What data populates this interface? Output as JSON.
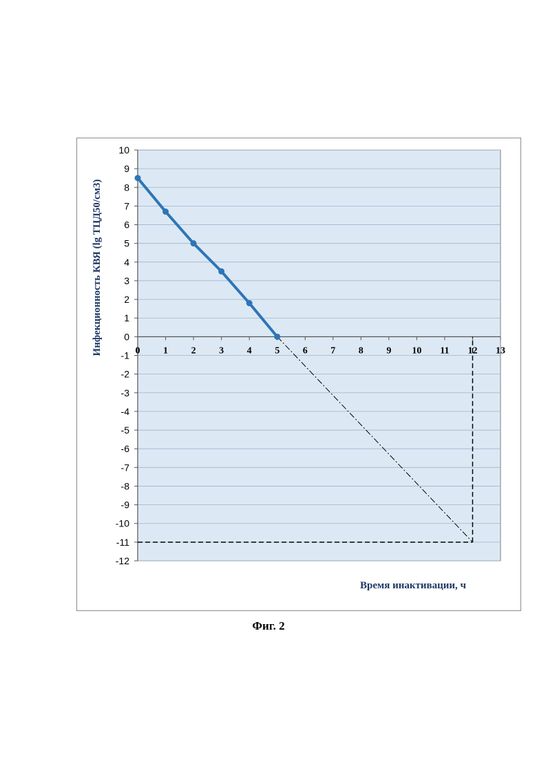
{
  "caption": "Фиг. 2",
  "colors": {
    "plot_background": "#dce9f5",
    "series": "#2e75b6",
    "gridline": "#9fb3c8",
    "axis_title": "#1f3864"
  },
  "chart_data": {
    "type": "line",
    "title": "",
    "xlabel": "Время инактивации, ч",
    "ylabel": "Инфекционность КВЯ (lg ТЦД50/см3)",
    "xlim": [
      0,
      13
    ],
    "ylim": [
      -12,
      10
    ],
    "x_ticks": [
      "0",
      "1",
      "2",
      "3",
      "4",
      "5",
      "6",
      "7",
      "8",
      "9",
      "10",
      "11",
      "12",
      "13"
    ],
    "y_ticks": [
      "10",
      "9",
      "8",
      "7",
      "6",
      "5",
      "4",
      "3",
      "2",
      "1",
      "0",
      "-1",
      "-2",
      "-3",
      "-4",
      "-5",
      "-6",
      "-7",
      "-8",
      "-9",
      "-10",
      "-11",
      "-12"
    ],
    "grid": true,
    "legend": "none",
    "series": [
      {
        "x": [
          0,
          1,
          2,
          3,
          4,
          5
        ],
        "y": [
          8.5,
          6.7,
          5.0,
          3.5,
          1.8,
          0.0
        ],
        "style": "solid-with-markers"
      }
    ],
    "extrapolation": {
      "x": [
        5,
        12
      ],
      "y": [
        0,
        -11
      ],
      "style": "dash-dot"
    },
    "reference_lines": [
      {
        "x": [
          0,
          12
        ],
        "y": [
          -11,
          -11
        ],
        "style": "dashed"
      },
      {
        "x": [
          12,
          12
        ],
        "y": [
          -11,
          0
        ],
        "style": "dashed"
      }
    ]
  }
}
